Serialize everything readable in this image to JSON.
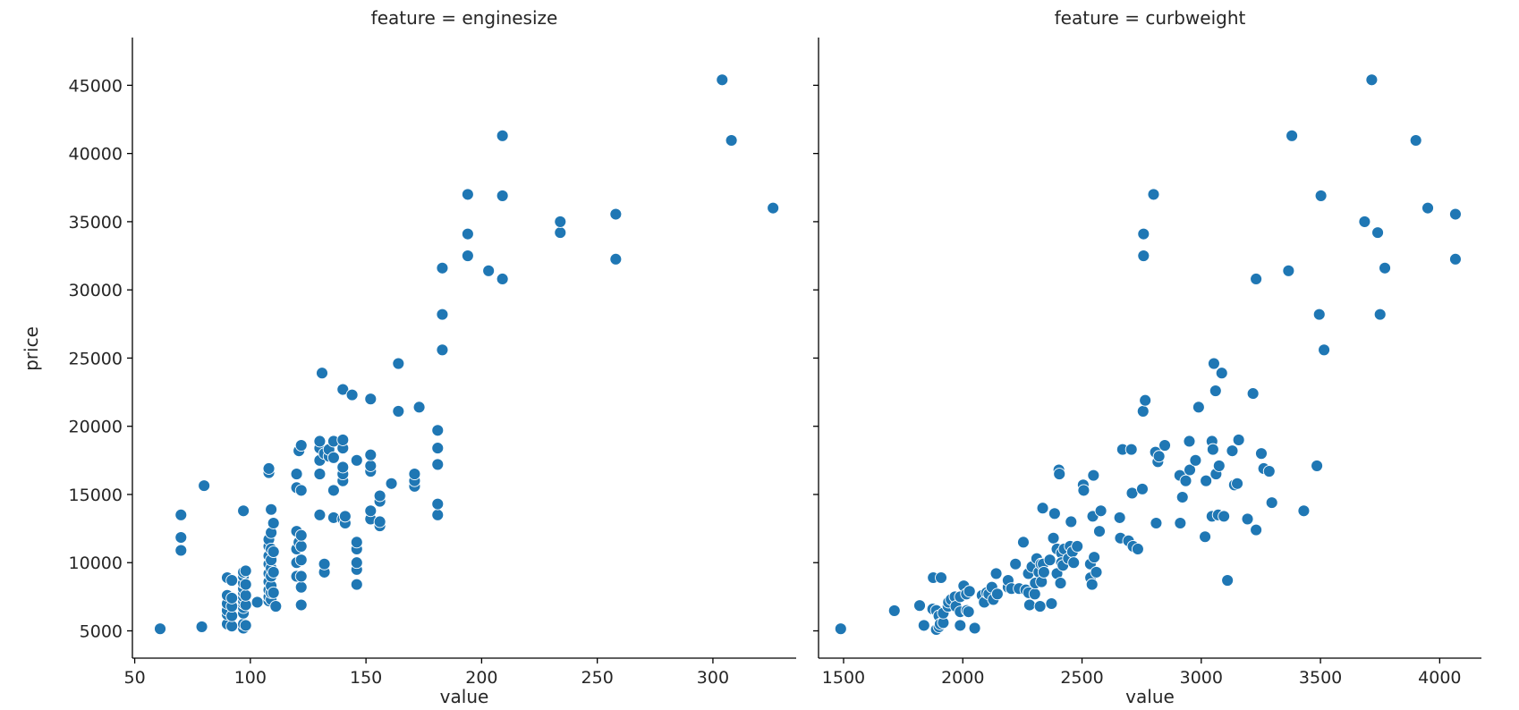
{
  "chart_data": {
    "type": "scatter",
    "ylabel": "price",
    "xlabel": "value",
    "ylim": [
      3000,
      48500
    ],
    "yticks": [
      5000,
      10000,
      15000,
      20000,
      25000,
      30000,
      35000,
      40000,
      45000
    ],
    "grid": false,
    "legend": "none",
    "color": "#1f77b4",
    "facets": [
      {
        "title": "feature = enginesize",
        "xlim": [
          49,
          336
        ],
        "xticks": [
          50,
          100,
          150,
          200,
          250,
          300
        ],
        "points": [
          [
            61,
            5151
          ],
          [
            70,
            13500
          ],
          [
            70,
            11850
          ],
          [
            70,
            10900
          ],
          [
            79,
            5300
          ],
          [
            80,
            15645
          ],
          [
            90,
            5500
          ],
          [
            90,
            6200
          ],
          [
            90,
            6500
          ],
          [
            90,
            7000
          ],
          [
            90,
            7600
          ],
          [
            90,
            8900
          ],
          [
            92,
            5350
          ],
          [
            92,
            6100
          ],
          [
            92,
            6800
          ],
          [
            92,
            7400
          ],
          [
            92,
            8700
          ],
          [
            97,
            5200
          ],
          [
            97,
            5500
          ],
          [
            97,
            6300
          ],
          [
            97,
            6700
          ],
          [
            97,
            7000
          ],
          [
            97,
            7200
          ],
          [
            97,
            7500
          ],
          [
            97,
            7800
          ],
          [
            97,
            8100
          ],
          [
            97,
            8500
          ],
          [
            97,
            9000
          ],
          [
            97,
            9300
          ],
          [
            97,
            13800
          ],
          [
            98,
            5400
          ],
          [
            98,
            6900
          ],
          [
            98,
            7600
          ],
          [
            98,
            8400
          ],
          [
            98,
            9400
          ],
          [
            103,
            7100
          ],
          [
            108,
            7200
          ],
          [
            108,
            7500
          ],
          [
            108,
            8000
          ],
          [
            108,
            8600
          ],
          [
            108,
            9200
          ],
          [
            108,
            9900
          ],
          [
            108,
            10500
          ],
          [
            108,
            11200
          ],
          [
            108,
            11700
          ],
          [
            108,
            16600
          ],
          [
            108,
            16900
          ],
          [
            109,
            7300
          ],
          [
            109,
            7800
          ],
          [
            109,
            8300
          ],
          [
            109,
            9000
          ],
          [
            109,
            9600
          ],
          [
            109,
            10200
          ],
          [
            109,
            11000
          ],
          [
            109,
            12200
          ],
          [
            109,
            13900
          ],
          [
            110,
            7800
          ],
          [
            110,
            9300
          ],
          [
            110,
            10800
          ],
          [
            110,
            12900
          ],
          [
            111,
            6800
          ],
          [
            120,
            9000
          ],
          [
            120,
            10000
          ],
          [
            120,
            11000
          ],
          [
            120,
            12300
          ],
          [
            120,
            15500
          ],
          [
            120,
            16500
          ],
          [
            121,
            11500
          ],
          [
            121,
            18200
          ],
          [
            122,
            6900
          ],
          [
            122,
            8200
          ],
          [
            122,
            9000
          ],
          [
            122,
            10200
          ],
          [
            122,
            11200
          ],
          [
            122,
            12000
          ],
          [
            122,
            15300
          ],
          [
            122,
            18600
          ],
          [
            130,
            13500
          ],
          [
            130,
            16500
          ],
          [
            130,
            17500
          ],
          [
            130,
            18400
          ],
          [
            130,
            18900
          ],
          [
            131,
            23900
          ],
          [
            132,
            9300
          ],
          [
            132,
            9900
          ],
          [
            132,
            18000
          ],
          [
            134,
            17800
          ],
          [
            134,
            18300
          ],
          [
            136,
            13300
          ],
          [
            136,
            15300
          ],
          [
            136,
            17700
          ],
          [
            136,
            18900
          ],
          [
            140,
            13200
          ],
          [
            140,
            16000
          ],
          [
            140,
            16500
          ],
          [
            140,
            17000
          ],
          [
            140,
            18400
          ],
          [
            140,
            19000
          ],
          [
            140,
            22700
          ],
          [
            141,
            12900
          ],
          [
            141,
            13400
          ],
          [
            144,
            22300
          ],
          [
            146,
            8400
          ],
          [
            146,
            9500
          ],
          [
            146,
            10000
          ],
          [
            146,
            11000
          ],
          [
            146,
            11500
          ],
          [
            146,
            17500
          ],
          [
            152,
            13200
          ],
          [
            152,
            13800
          ],
          [
            152,
            16700
          ],
          [
            152,
            17100
          ],
          [
            152,
            17900
          ],
          [
            152,
            22000
          ],
          [
            156,
            12700
          ],
          [
            156,
            13000
          ],
          [
            156,
            14500
          ],
          [
            156,
            14900
          ],
          [
            161,
            15800
          ],
          [
            164,
            21100
          ],
          [
            164,
            24600
          ],
          [
            171,
            15600
          ],
          [
            171,
            16000
          ],
          [
            171,
            16500
          ],
          [
            173,
            21400
          ],
          [
            181,
            13500
          ],
          [
            181,
            14300
          ],
          [
            181,
            17200
          ],
          [
            181,
            18400
          ],
          [
            181,
            19700
          ],
          [
            183,
            25600
          ],
          [
            183,
            28200
          ],
          [
            183,
            31600
          ],
          [
            194,
            32500
          ],
          [
            194,
            34100
          ],
          [
            194,
            37000
          ],
          [
            203,
            31400
          ],
          [
            209,
            30800
          ],
          [
            209,
            36900
          ],
          [
            209,
            41300
          ],
          [
            234,
            34200
          ],
          [
            234,
            35000
          ],
          [
            258,
            32250
          ],
          [
            258,
            35550
          ],
          [
            304,
            45400
          ],
          [
            308,
            40960
          ],
          [
            326,
            36000
          ]
        ]
      },
      {
        "title": "feature = curbweight",
        "xlim": [
          1395,
          4175
        ],
        "xticks": [
          1500,
          2000,
          2500,
          3000,
          3500,
          4000
        ],
        "points": [
          [
            1488,
            5151
          ],
          [
            1713,
            6480
          ],
          [
            1819,
            6855
          ],
          [
            1837,
            5400
          ],
          [
            1874,
            6600
          ],
          [
            1876,
            8900
          ],
          [
            1889,
            5100
          ],
          [
            1889,
            6500
          ],
          [
            1900,
            5300
          ],
          [
            1900,
            6100
          ],
          [
            1905,
            5500
          ],
          [
            1909,
            8900
          ],
          [
            1918,
            5600
          ],
          [
            1918,
            6300
          ],
          [
            1938,
            6800
          ],
          [
            1940,
            7100
          ],
          [
            1951,
            7300
          ],
          [
            1967,
            7500
          ],
          [
            1971,
            6800
          ],
          [
            1989,
            6400
          ],
          [
            1989,
            7500
          ],
          [
            1989,
            5400
          ],
          [
            2004,
            8300
          ],
          [
            2015,
            7700
          ],
          [
            2017,
            6500
          ],
          [
            2024,
            6400
          ],
          [
            2028,
            7900
          ],
          [
            2050,
            5200
          ],
          [
            2081,
            7600
          ],
          [
            2090,
            7100
          ],
          [
            2100,
            7800
          ],
          [
            2109,
            7700
          ],
          [
            2122,
            8200
          ],
          [
            2128,
            7300
          ],
          [
            2140,
            9200
          ],
          [
            2145,
            7700
          ],
          [
            2190,
            8200
          ],
          [
            2190,
            8700
          ],
          [
            2204,
            8100
          ],
          [
            2221,
            9900
          ],
          [
            2236,
            8100
          ],
          [
            2254,
            11500
          ],
          [
            2264,
            8000
          ],
          [
            2275,
            9200
          ],
          [
            2276,
            7800
          ],
          [
            2280,
            6900
          ],
          [
            2290,
            9700
          ],
          [
            2302,
            7700
          ],
          [
            2304,
            8500
          ],
          [
            2310,
            10300
          ],
          [
            2319,
            9300
          ],
          [
            2324,
            6800
          ],
          [
            2328,
            9900
          ],
          [
            2330,
            8600
          ],
          [
            2335,
            14000
          ],
          [
            2337,
            9900
          ],
          [
            2340,
            9300
          ],
          [
            2365,
            10200
          ],
          [
            2372,
            7000
          ],
          [
            2380,
            11800
          ],
          [
            2385,
            13600
          ],
          [
            2395,
            11000
          ],
          [
            2395,
            9200
          ],
          [
            2403,
            16800
          ],
          [
            2405,
            16500
          ],
          [
            2410,
            8500
          ],
          [
            2414,
            10700
          ],
          [
            2414,
            10000
          ],
          [
            2420,
            9800
          ],
          [
            2425,
            11000
          ],
          [
            2443,
            10300
          ],
          [
            2450,
            11200
          ],
          [
            2454,
            13000
          ],
          [
            2460,
            10800
          ],
          [
            2465,
            10000
          ],
          [
            2480,
            11200
          ],
          [
            2505,
            15700
          ],
          [
            2507,
            15300
          ],
          [
            2535,
            9900
          ],
          [
            2536,
            8900
          ],
          [
            2542,
            8400
          ],
          [
            2545,
            13400
          ],
          [
            2548,
            16400
          ],
          [
            2551,
            10400
          ],
          [
            2560,
            9300
          ],
          [
            2579,
            13800
          ],
          [
            2573,
            12300
          ],
          [
            2658,
            13300
          ],
          [
            2661,
            11800
          ],
          [
            2670,
            18300
          ],
          [
            2695,
            11600
          ],
          [
            2707,
            18300
          ],
          [
            2710,
            15100
          ],
          [
            2714,
            11200
          ],
          [
            2734,
            11000
          ],
          [
            2753,
            15400
          ],
          [
            2756,
            21100
          ],
          [
            2765,
            21900
          ],
          [
            2808,
            18100
          ],
          [
            2811,
            12900
          ],
          [
            2818,
            17400
          ],
          [
            2823,
            17800
          ],
          [
            2847,
            18600
          ],
          [
            2910,
            16400
          ],
          [
            2912,
            12900
          ],
          [
            2921,
            14800
          ],
          [
            2935,
            16000
          ],
          [
            2950,
            18900
          ],
          [
            2952,
            16800
          ],
          [
            2976,
            17500
          ],
          [
            2989,
            21400
          ],
          [
            3016,
            11900
          ],
          [
            3020,
            16000
          ],
          [
            3045,
            18900
          ],
          [
            3045,
            13400
          ],
          [
            3049,
            18300
          ],
          [
            3053,
            24600
          ],
          [
            3060,
            22600
          ],
          [
            3062,
            16500
          ],
          [
            3071,
            13500
          ],
          [
            3075,
            17100
          ],
          [
            3086,
            23900
          ],
          [
            3095,
            13400
          ],
          [
            3110,
            8700
          ],
          [
            3130,
            18200
          ],
          [
            3139,
            15700
          ],
          [
            3151,
            15800
          ],
          [
            3157,
            19000
          ],
          [
            3194,
            13200
          ],
          [
            3217,
            22400
          ],
          [
            3230,
            12400
          ],
          [
            3230,
            30800
          ],
          [
            3252,
            18000
          ],
          [
            3262,
            16900
          ],
          [
            3285,
            16700
          ],
          [
            3296,
            14400
          ],
          [
            3366,
            31400
          ],
          [
            3380,
            41300
          ],
          [
            3430,
            13800
          ],
          [
            3485,
            17100
          ],
          [
            3495,
            28200
          ],
          [
            3502,
            36900
          ],
          [
            3515,
            25600
          ],
          [
            3685,
            35000
          ],
          [
            3715,
            45400
          ],
          [
            3740,
            34200
          ],
          [
            3750,
            28200
          ],
          [
            3770,
            31600
          ],
          [
            3900,
            40960
          ],
          [
            3950,
            36000
          ],
          [
            4066,
            35550
          ],
          [
            4066,
            32250
          ],
          [
            2758,
            32500
          ],
          [
            2758,
            34100
          ],
          [
            2800,
            37000
          ]
        ]
      }
    ]
  }
}
